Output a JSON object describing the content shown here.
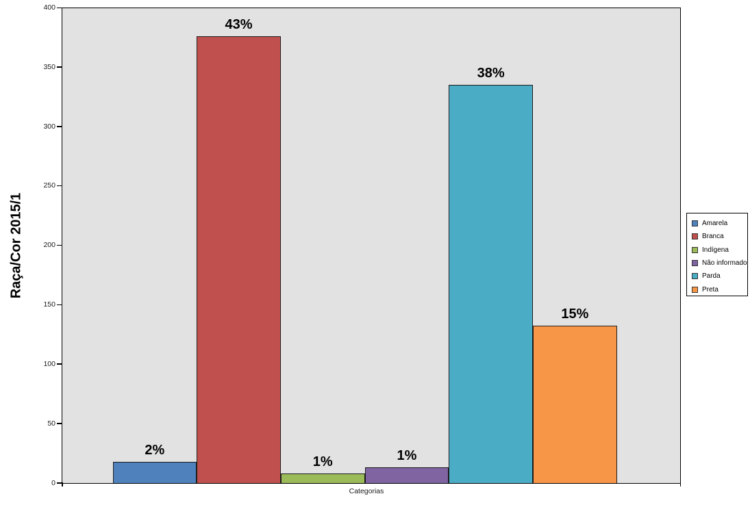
{
  "chart_data": {
    "type": "bar",
    "title": "",
    "xlabel": "Categorias",
    "ylabel": "Raça/Cor 2015/1",
    "ylim": [
      0,
      400
    ],
    "yticks": [
      0,
      50,
      100,
      150,
      200,
      250,
      300,
      350,
      400
    ],
    "grid": false,
    "plot_background": "#E2E2E2",
    "legend_position": "right",
    "categories": [
      "Amarela",
      "Branca",
      "Indígena",
      "Não informado",
      "Parda",
      "Preta"
    ],
    "series": [
      {
        "name": "Raça/Cor 2015/1",
        "values": [
          18,
          377,
          8,
          13,
          336,
          133
        ],
        "value_labels": [
          "2%",
          "43%",
          "1%",
          "1%",
          "38%",
          "15%"
        ],
        "colors": [
          "#4F81BD",
          "#C0504D",
          "#9BBB59",
          "#8064A2",
          "#4BACC6",
          "#F79646"
        ]
      }
    ],
    "legend": [
      {
        "label": "Amarela",
        "color": "#4F81BD"
      },
      {
        "label": "Branca",
        "color": "#C0504D"
      },
      {
        "label": "Indígena",
        "color": "#9BBB59"
      },
      {
        "label": "Não informado",
        "color": "#8064A2"
      },
      {
        "label": "Parda",
        "color": "#4BACC6"
      },
      {
        "label": "Preta",
        "color": "#F79646"
      }
    ]
  }
}
